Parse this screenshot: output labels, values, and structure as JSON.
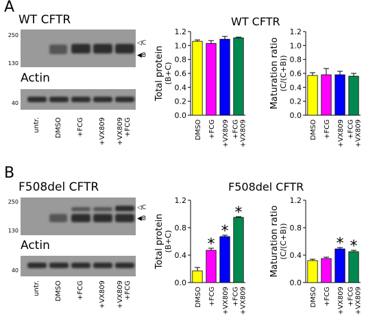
{
  "panels": [
    {
      "letter": "A",
      "blot_title": "WT CFTR",
      "mw_top": [
        "250",
        "130"
      ],
      "band_labels": [
        "◁C",
        "◀B"
      ],
      "loading_title": "Actin",
      "mw_bottom": "40",
      "lanes": [
        "untr.",
        "DMSO",
        "+FCG",
        "+VX809",
        "+VX809\n+FCG"
      ],
      "chart_title": "WT CFTR"
    },
    {
      "letter": "B",
      "blot_title": "F508del CFTR",
      "mw_top": [
        "250",
        "130"
      ],
      "band_labels": [
        "◁C",
        "◀B"
      ],
      "loading_title": "Actin",
      "mw_bottom": "40",
      "lanes": [
        "untr.",
        "DMSO",
        "+FCG",
        "+VX809",
        "+VX809\n+FCG"
      ],
      "chart_title": "F508del CFTR"
    }
  ],
  "colors": {
    "DMSO": "#ffff00",
    "FCG": "#ff00ff",
    "VX809": "#0000ff",
    "FCG_VX809": "#00894f"
  },
  "chart_data": [
    {
      "type": "bar",
      "panel": "A",
      "categories": [
        "DMSO",
        "+FCG",
        "+VX809",
        "+FCG\n+VX809"
      ],
      "values": [
        1.06,
        1.03,
        1.09,
        1.11
      ],
      "errors": [
        0.02,
        0.04,
        0.04,
        0.01
      ],
      "significant": [
        false,
        false,
        false,
        false
      ],
      "ylabel": "Total protein\n(B+C)",
      "ylim": [
        0,
        1.2
      ],
      "yticks": [
        "0.0",
        "0.2",
        "0.4",
        "0.6",
        "0.8",
        "1.0",
        "1.2"
      ]
    },
    {
      "type": "bar",
      "panel": "A",
      "categories": [
        "DMSO",
        "+FCG",
        "+VX809",
        "+FCG\n+VX809"
      ],
      "values": [
        0.57,
        0.58,
        0.58,
        0.56
      ],
      "errors": [
        0.04,
        0.09,
        0.05,
        0.04
      ],
      "significant": [
        false,
        false,
        false,
        false
      ],
      "ylabel": "Maturation ratio\n(C/(C+B))",
      "ylim": [
        0,
        1.2
      ],
      "yticks": [
        "0.0",
        "0.2",
        "0.4",
        "0.6",
        "0.8",
        "1.0",
        "1.2"
      ]
    },
    {
      "type": "bar",
      "panel": "B",
      "categories": [
        "DMSO",
        "+FCG",
        "+VX809",
        "+FCG\n+VX809"
      ],
      "values": [
        0.17,
        0.47,
        0.67,
        0.95
      ],
      "errors": [
        0.05,
        0.03,
        0.02,
        0.01
      ],
      "significant": [
        false,
        true,
        true,
        true
      ],
      "significance_mark": "*",
      "ylabel": "Total protein\n(B+C)",
      "ylim": [
        0,
        1.2
      ],
      "yticks": [
        "0.0",
        "0.4",
        "0.8",
        "1.2"
      ]
    },
    {
      "type": "bar",
      "panel": "B",
      "categories": [
        "DMSO",
        "+FCG",
        "+VX809",
        "+FCG\n+VX809"
      ],
      "values": [
        0.32,
        0.35,
        0.49,
        0.45
      ],
      "errors": [
        0.02,
        0.02,
        0.02,
        0.02
      ],
      "significant": [
        false,
        false,
        true,
        true
      ],
      "significance_mark": "*",
      "ylabel": "Maturation ratio\n(C/(C+B))",
      "ylim": [
        0,
        1.2
      ],
      "yticks": [
        "0.0",
        "0.4",
        "0.8",
        "1.2"
      ]
    }
  ]
}
